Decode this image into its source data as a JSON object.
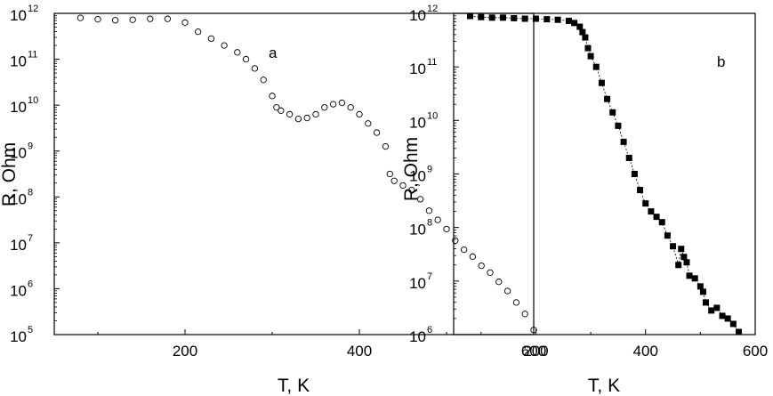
{
  "chart_data": [
    {
      "type": "scatter",
      "panel_label": "a",
      "xlabel": "T, K",
      "ylabel": "R, Ohm",
      "xlim": [
        50,
        600
      ],
      "ylim_log10": [
        5,
        12
      ],
      "yscale": "log",
      "x_ticks": [
        "200",
        "400",
        "600"
      ],
      "y_ticks": [
        {
          "base": "10",
          "exp": "5"
        },
        {
          "base": "10",
          "exp": "6"
        },
        {
          "base": "10",
          "exp": "7"
        },
        {
          "base": "10",
          "exp": "8"
        },
        {
          "base": "10",
          "exp": "9"
        },
        {
          "base": "10",
          "exp": "10"
        },
        {
          "base": "10",
          "exp": "11"
        },
        {
          "base": "10",
          "exp": "12"
        }
      ],
      "marker": "open-circle",
      "grid": false,
      "series": [
        {
          "x": [
            80,
            100,
            120,
            140,
            160,
            180,
            200,
            215,
            230,
            245,
            260,
            270,
            280,
            290,
            300,
            305,
            310,
            320,
            330,
            340,
            350,
            360,
            370,
            380,
            390,
            400,
            410,
            420,
            430,
            435,
            440,
            450,
            460,
            470,
            480,
            490,
            500,
            510,
            520,
            530,
            540,
            550,
            560,
            570,
            580,
            590,
            600
          ],
          "y_log10": [
            11.9,
            11.87,
            11.85,
            11.86,
            11.88,
            11.88,
            11.8,
            11.6,
            11.45,
            11.3,
            11.15,
            11.0,
            10.8,
            10.55,
            10.2,
            9.95,
            9.88,
            9.8,
            9.7,
            9.72,
            9.8,
            9.95,
            10.02,
            10.05,
            9.95,
            9.8,
            9.6,
            9.4,
            9.1,
            8.5,
            8.35,
            8.25,
            8.15,
            7.95,
            7.7,
            7.5,
            7.3,
            7.05,
            6.85,
            6.7,
            6.5,
            6.35,
            6.15,
            5.95,
            5.7,
            5.45,
            5.1
          ]
        }
      ]
    },
    {
      "type": "scatter",
      "panel_label": "b",
      "xlabel": "T, K",
      "ylabel": "R, Ohm",
      "xlim": [
        50,
        600
      ],
      "ylim_log10": [
        6,
        12
      ],
      "yscale": "log",
      "x_ticks": [
        "200",
        "400",
        "600"
      ],
      "y_ticks": [
        {
          "base": "10",
          "exp": "6"
        },
        {
          "base": "10",
          "exp": "7"
        },
        {
          "base": "10",
          "exp": "8"
        },
        {
          "base": "10",
          "exp": "9"
        },
        {
          "base": "10",
          "exp": "10"
        },
        {
          "base": "10",
          "exp": "11"
        },
        {
          "base": "10",
          "exp": "12"
        }
      ],
      "marker": "filled-square",
      "connector": "dotted",
      "grid": false,
      "series": [
        {
          "x": [
            80,
            100,
            120,
            140,
            160,
            180,
            200,
            220,
            240,
            260,
            270,
            280,
            285,
            290,
            295,
            300,
            310,
            320,
            330,
            340,
            350,
            360,
            370,
            380,
            390,
            400,
            410,
            420,
            430,
            440,
            450,
            460,
            465,
            470,
            475,
            480,
            490,
            500,
            505,
            510,
            520,
            530,
            540,
            550,
            560,
            570
          ],
          "y_log10": [
            11.95,
            11.93,
            11.92,
            11.92,
            11.91,
            11.9,
            11.9,
            11.89,
            11.88,
            11.86,
            11.82,
            11.75,
            11.65,
            11.55,
            11.35,
            11.2,
            11.0,
            10.7,
            10.4,
            10.15,
            9.9,
            9.6,
            9.3,
            9.0,
            8.7,
            8.45,
            8.3,
            8.2,
            8.1,
            7.85,
            7.65,
            7.3,
            7.6,
            7.45,
            7.35,
            7.1,
            7.05,
            6.9,
            6.8,
            6.6,
            6.45,
            6.5,
            6.35,
            6.3,
            6.2,
            6.05
          ]
        }
      ]
    }
  ]
}
